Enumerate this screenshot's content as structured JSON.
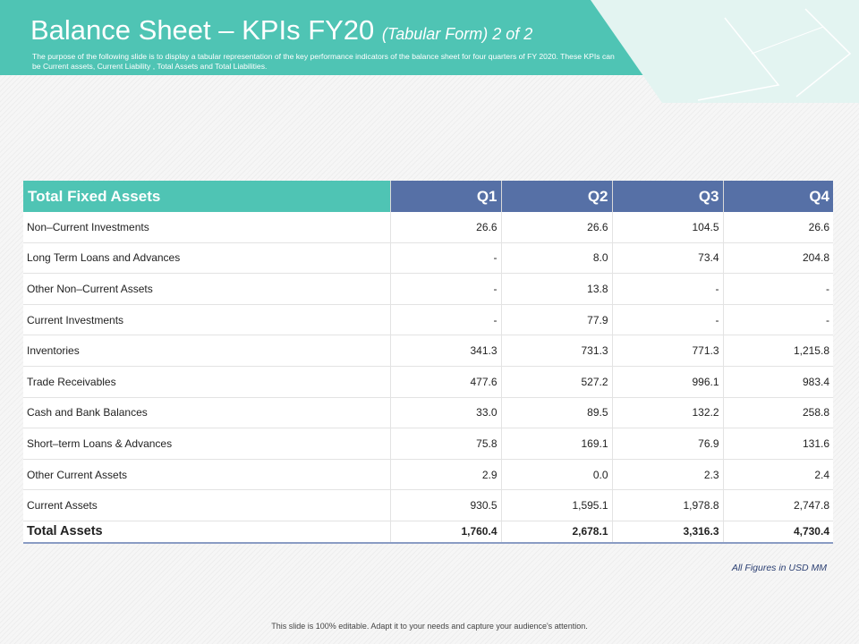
{
  "title": "Balance Sheet – KPIs FY20",
  "title_sub": "(Tabular Form) 2 of 2",
  "subtitle": "The purpose of the following slide is to display a tabular representation of the key performance indicators of the balance sheet for four quarters of FY 2020. These KPIs can be Current assets, Current Liability , Total Assets and Total Liabilities.",
  "colors": {
    "teal": "#4fc4b4",
    "blue": "#5670a6"
  },
  "table": {
    "headers": [
      "Total Fixed Assets",
      "Q1",
      "Q2",
      "Q3",
      "Q4"
    ],
    "rows": [
      [
        "Non–Current  Investments",
        "26.6",
        "26.6",
        "104.5",
        "26.6"
      ],
      [
        "Long Term Loans and Advances",
        "-",
        "8.0",
        "73.4",
        "204.8"
      ],
      [
        "Other Non–Current  Assets",
        "-",
        "13.8",
        "-",
        "-"
      ],
      [
        "Current  Investments",
        "-",
        "77.9",
        "-",
        "-"
      ],
      [
        "Inventories",
        "341.3",
        "731.3",
        "771.3",
        "1,215.8"
      ],
      [
        "Trade  Receivables",
        "477.6",
        "527.2",
        "996.1",
        "983.4"
      ],
      [
        "Cash and Bank Balances",
        "33.0",
        "89.5",
        "132.2",
        "258.8"
      ],
      [
        "Short–term Loans & Advances",
        "75.8",
        "169.1",
        "76.9",
        "131.6"
      ],
      [
        "Other Current  Assets",
        "2.9",
        "0.0",
        "2.3",
        "2.4"
      ],
      [
        "Current  Assets",
        "930.5",
        "1,595.1",
        "1,978.8",
        "2,747.8"
      ]
    ],
    "total": [
      "Total Assets",
      "1,760.4",
      "2,678.1",
      "3,316.3",
      "4,730.4"
    ]
  },
  "note": "All Figures in USD MM",
  "footer": "This slide is 100% editable.  Adapt it to your needs and capture your audience's attention."
}
